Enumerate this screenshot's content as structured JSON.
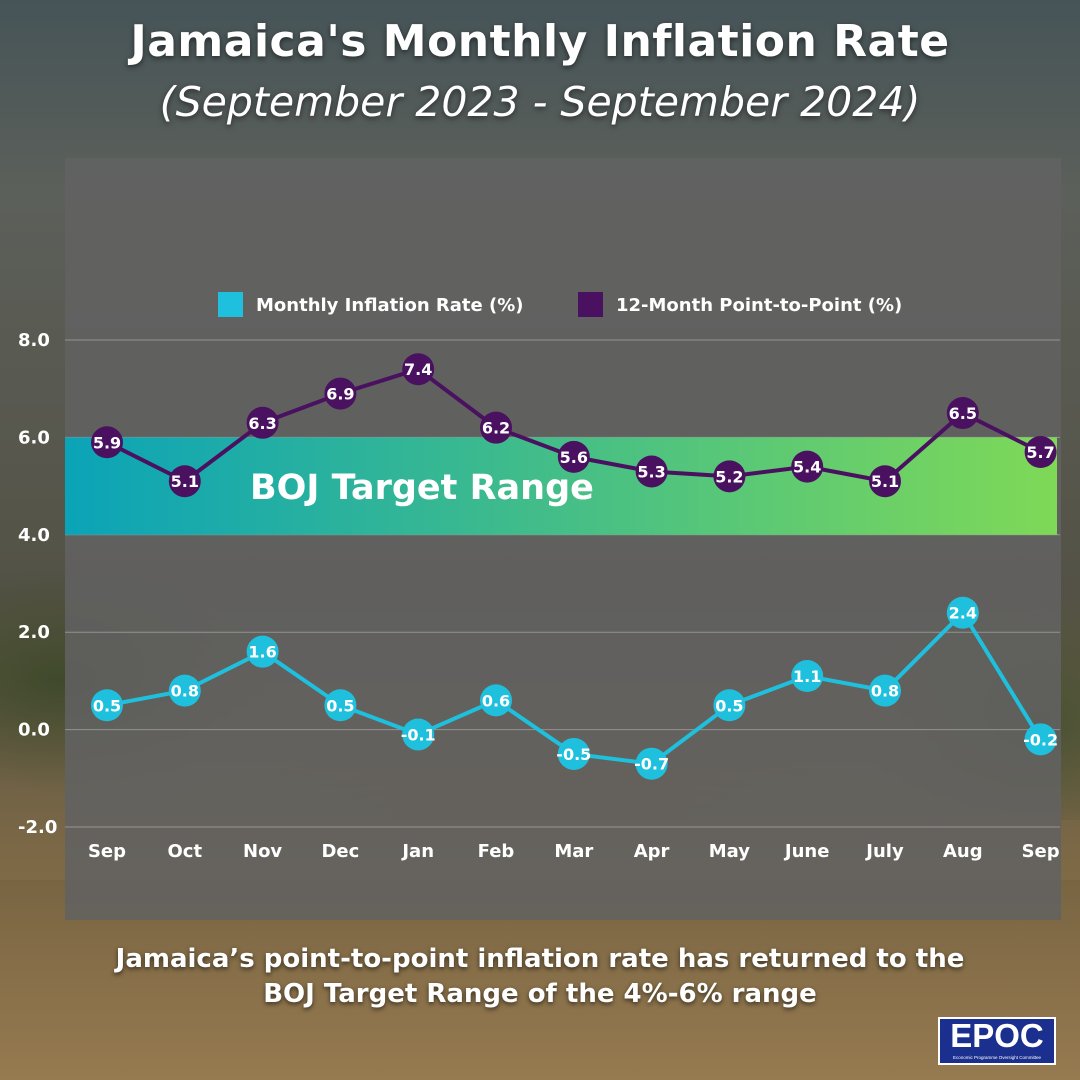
{
  "title": "Jamaica's Monthly Inflation Rate",
  "subtitle": "(September 2023 - September 2024)",
  "caption_line1": "Jamaica’s point-to-point inflation rate has returned to the",
  "caption_line2": "BOJ Target Range of the 4%-6% range",
  "logo": {
    "text": "EPOC",
    "subtext": "Economic Programme Oversight Committee"
  },
  "colors": {
    "monthly": "#1ec0dd",
    "point_to_point": "#4a1160",
    "band_start": "#0aa3b8",
    "band_end": "#7fd957"
  },
  "chart_data": {
    "type": "line",
    "categories": [
      "Sep",
      "Oct",
      "Nov",
      "Dec",
      "Jan",
      "Feb",
      "Mar",
      "Apr",
      "May",
      "June",
      "July",
      "Aug",
      "Sep"
    ],
    "series": [
      {
        "name": "Monthly Inflation Rate (%)",
        "values": [
          0.5,
          0.8,
          1.6,
          0.5,
          -0.1,
          0.6,
          -0.5,
          -0.7,
          0.5,
          1.1,
          0.8,
          2.4,
          -0.2
        ]
      },
      {
        "name": "12-Month Point-to-Point (%)",
        "values": [
          5.9,
          5.1,
          6.3,
          6.9,
          7.4,
          6.2,
          5.6,
          5.3,
          5.2,
          5.4,
          5.1,
          6.5,
          5.7
        ]
      }
    ],
    "yticks": [
      "-2.0",
      "0.0",
      "2.0",
      "4.0",
      "6.0",
      "8.0"
    ],
    "ylim": [
      -2,
      8
    ],
    "target_band": {
      "label": "BOJ Target Range",
      "min": 4,
      "max": 6
    },
    "grid": true,
    "legend_position": "top-center"
  }
}
